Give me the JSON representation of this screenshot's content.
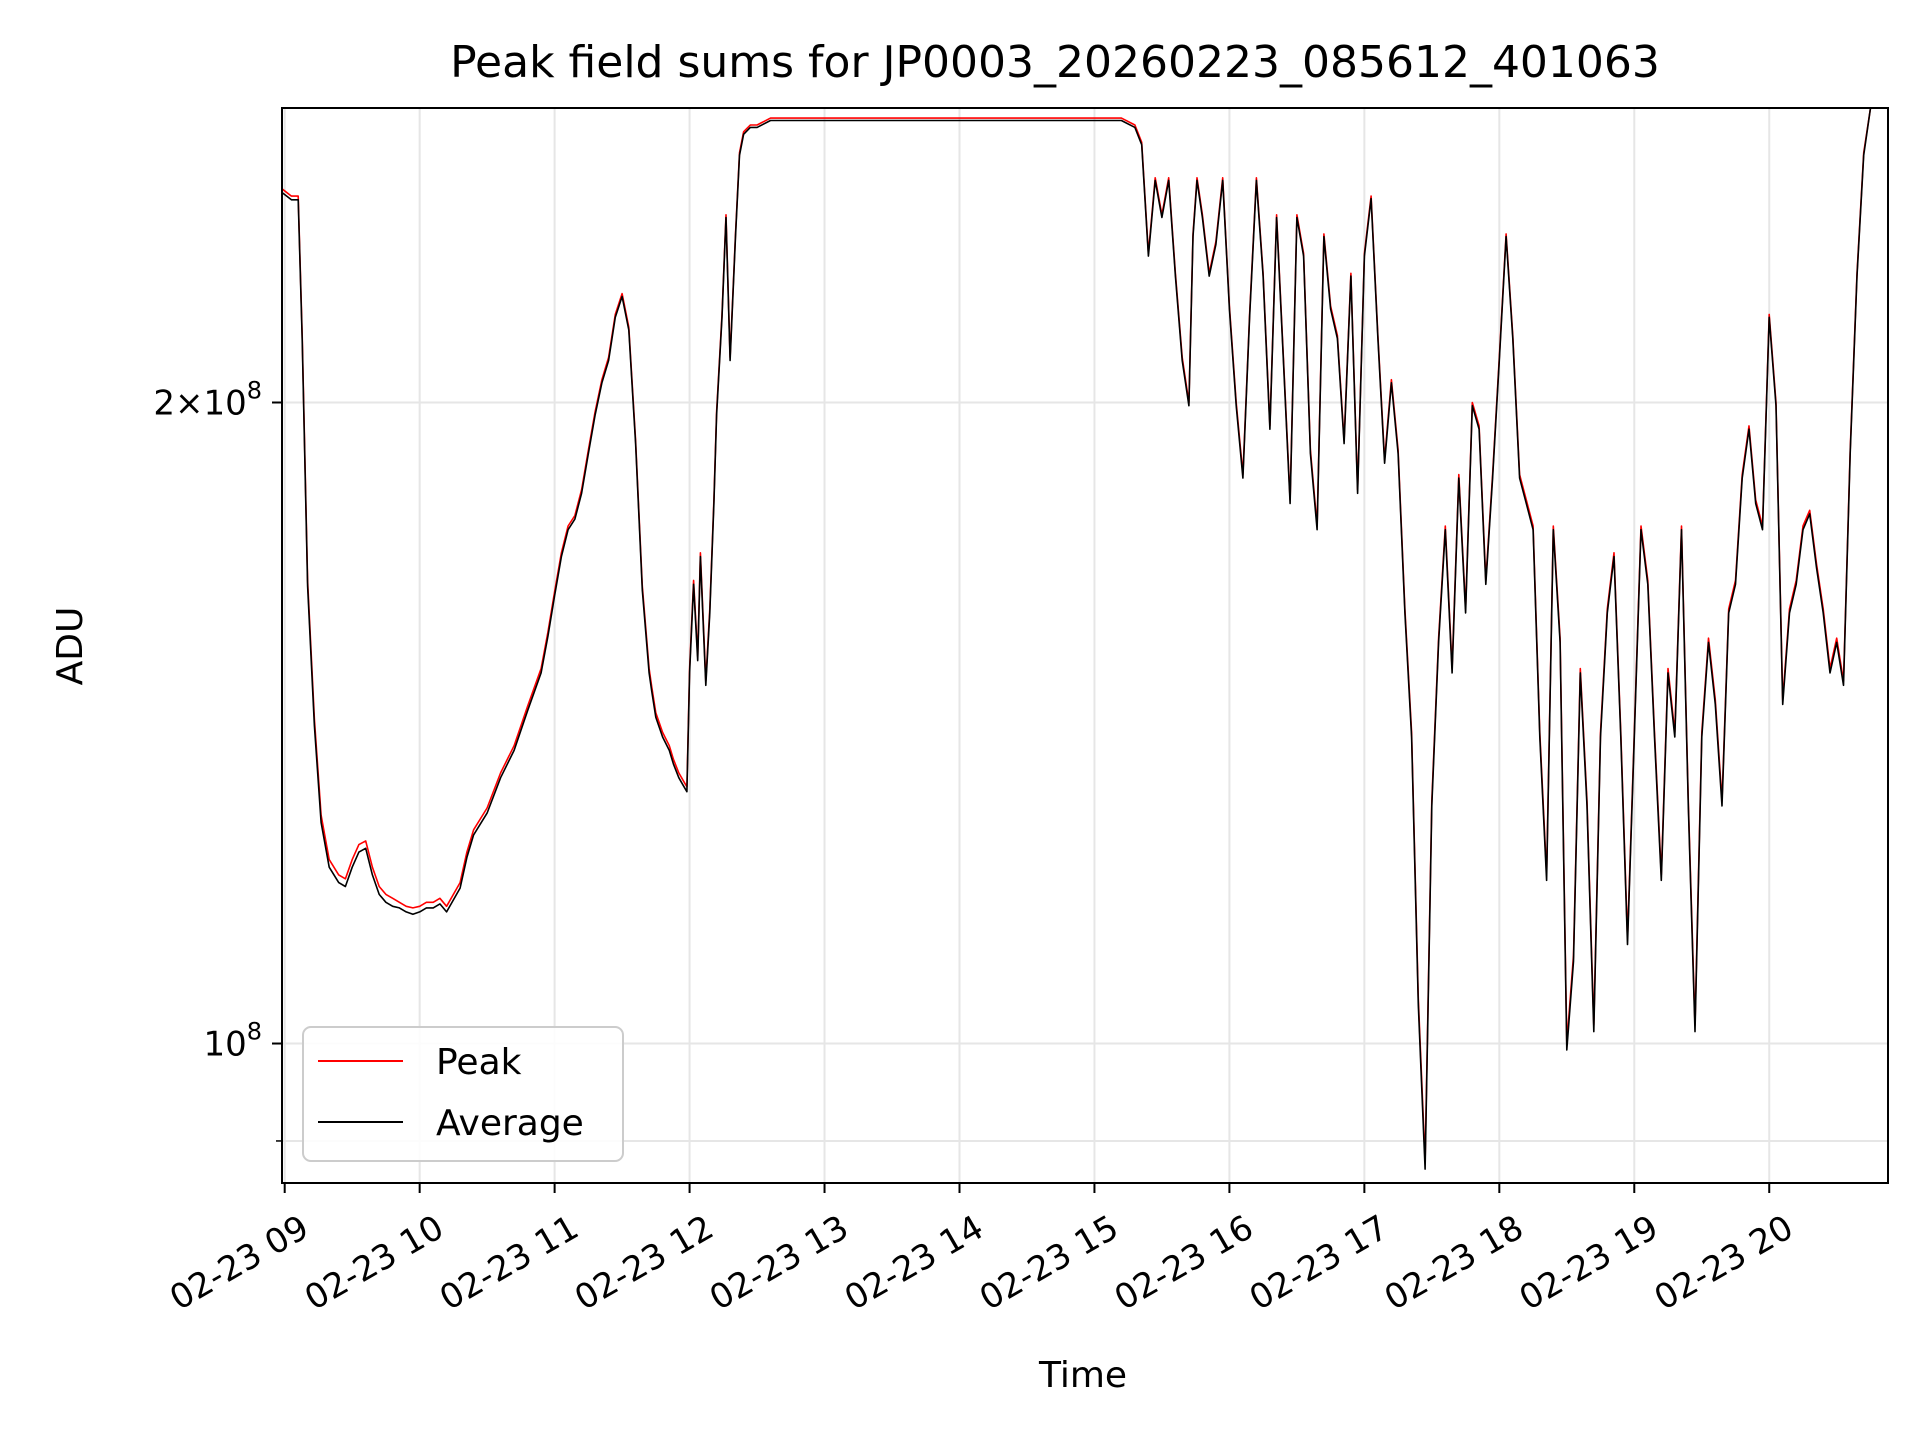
{
  "chart_data": {
    "type": "line",
    "title": "Peak field sums for JP0003_20260223_085612_401063",
    "xlabel": "Time",
    "ylabel": "ADU",
    "yscale": "log",
    "grid": true,
    "legend_position": "lower-left",
    "xlim": [
      8.98,
      20.88
    ],
    "ylim": [
      86000000,
      275000000
    ],
    "x_ticks": [
      {
        "value": 9,
        "label": "02-23 09"
      },
      {
        "value": 10,
        "label": "02-23 10"
      },
      {
        "value": 11,
        "label": "02-23 11"
      },
      {
        "value": 12,
        "label": "02-23 12"
      },
      {
        "value": 13,
        "label": "02-23 13"
      },
      {
        "value": 14,
        "label": "02-23 14"
      },
      {
        "value": 15,
        "label": "02-23 15"
      },
      {
        "value": 16,
        "label": "02-23 16"
      },
      {
        "value": 17,
        "label": "02-23 17"
      },
      {
        "value": 18,
        "label": "02-23 18"
      },
      {
        "value": 19,
        "label": "02-23 19"
      },
      {
        "value": 20,
        "label": "02-23 20"
      }
    ],
    "y_ticks": [
      {
        "value": 200000000,
        "base": "2",
        "exp": "8",
        "times": true
      },
      {
        "value": 100000000,
        "base": "10",
        "exp": "8",
        "times": false
      }
    ],
    "y_minor_ticks": [
      90000000
    ],
    "series": [
      {
        "name": "Peak",
        "color": "#ff0000",
        "x": [
          8.98,
          9.05,
          9.1,
          9.13,
          9.17,
          9.22,
          9.27,
          9.33,
          9.4,
          9.45,
          9.5,
          9.55,
          9.6,
          9.65,
          9.7,
          9.75,
          9.8,
          9.85,
          9.9,
          9.95,
          10.0,
          10.05,
          10.1,
          10.15,
          10.2,
          10.3,
          10.35,
          10.4,
          10.5,
          10.6,
          10.7,
          10.8,
          10.9,
          10.95,
          11.0,
          11.05,
          11.1,
          11.15,
          11.2,
          11.25,
          11.3,
          11.35,
          11.4,
          11.45,
          11.5,
          11.55,
          11.6,
          11.65,
          11.7,
          11.72,
          11.75,
          11.8,
          11.85,
          11.88,
          11.92,
          11.95,
          11.98,
          12.0,
          12.03,
          12.06,
          12.08,
          12.12,
          12.15,
          12.18,
          12.2,
          12.24,
          12.27,
          12.3,
          12.34,
          12.37,
          12.4,
          12.45,
          12.5,
          12.6,
          12.8,
          13.0,
          13.1,
          13.5,
          14.0,
          14.5,
          14.8,
          15.0,
          15.2,
          15.3,
          15.35,
          15.4,
          15.45,
          15.5,
          15.55,
          15.6,
          15.65,
          15.7,
          15.73,
          15.76,
          15.8,
          15.85,
          15.9,
          15.95,
          16.0,
          16.05,
          16.1,
          16.15,
          16.2,
          16.25,
          16.3,
          16.35,
          16.4,
          16.45,
          16.5,
          16.55,
          16.6,
          16.65,
          16.7,
          16.75,
          16.8,
          16.85,
          16.9,
          16.95,
          17.0,
          17.05,
          17.1,
          17.15,
          17.2,
          17.25,
          17.3,
          17.35,
          17.4,
          17.45,
          17.5,
          17.55,
          17.6,
          17.65,
          17.7,
          17.75,
          17.8,
          17.85,
          17.9,
          17.95,
          18.0,
          18.05,
          18.1,
          18.15,
          18.2,
          18.25,
          18.3,
          18.35,
          18.4,
          18.45,
          18.5,
          18.55,
          18.6,
          18.65,
          18.7,
          18.75,
          18.8,
          18.85,
          18.9,
          18.95,
          19.0,
          19.05,
          19.1,
          19.15,
          19.2,
          19.25,
          19.3,
          19.35,
          19.4,
          19.45,
          19.5,
          19.55,
          19.6,
          19.65,
          19.7,
          19.75,
          19.8,
          19.85,
          19.9,
          19.95,
          20.0,
          20.05,
          20.1,
          20.15,
          20.2,
          20.25,
          20.3,
          20.35,
          20.4,
          20.45,
          20.5,
          20.55,
          20.6,
          20.65,
          20.7,
          20.75,
          20.8
        ],
        "values": [
          252000000,
          250000000,
          250000000,
          215000000,
          165000000,
          142000000,
          128000000,
          122000000,
          120000000,
          119500000,
          122000000,
          124000000,
          124500000,
          121000000,
          118500000,
          117500000,
          117000000,
          116500000,
          116000000,
          115800000,
          116000000,
          116500000,
          116500000,
          117000000,
          116000000,
          119000000,
          123000000,
          126000000,
          129000000,
          134000000,
          138000000,
          144000000,
          150000000,
          156000000,
          163000000,
          170000000,
          175000000,
          177000000,
          182000000,
          190000000,
          198000000,
          205000000,
          210000000,
          220000000,
          225000000,
          217000000,
          192000000,
          164000000,
          150000000,
          147000000,
          143000000,
          140000000,
          138000000,
          136000000,
          134000000,
          133000000,
          132000000,
          150000000,
          165000000,
          152000000,
          170000000,
          148000000,
          160000000,
          180000000,
          198000000,
          220000000,
          245000000,
          210000000,
          240000000,
          262000000,
          268000000,
          270000000,
          270000000,
          272000000,
          272000000,
          272000000,
          272000000,
          272000000,
          272000000,
          272000000,
          272000000,
          272000000,
          272000000,
          270000000,
          265000000,
          235000000,
          255000000,
          245000000,
          255000000,
          230000000,
          210000000,
          200000000,
          240000000,
          255000000,
          245000000,
          230000000,
          238000000,
          255000000,
          222000000,
          200000000,
          185000000,
          220000000,
          255000000,
          230000000,
          195000000,
          245000000,
          210000000,
          180000000,
          245000000,
          235000000,
          190000000,
          175000000,
          240000000,
          222000000,
          215000000,
          192000000,
          230000000,
          182000000,
          235000000,
          250000000,
          215000000,
          188000000,
          205000000,
          190000000,
          160000000,
          140000000,
          105000000,
          88000000,
          130000000,
          155000000,
          175000000,
          150000000,
          185000000,
          160000000,
          200000000,
          195000000,
          165000000,
          185000000,
          210000000,
          240000000,
          215000000,
          185000000,
          180000000,
          175000000,
          140000000,
          120000000,
          175000000,
          155000000,
          100000000,
          110000000,
          150000000,
          130000000,
          102000000,
          140000000,
          160000000,
          170000000,
          140000000,
          112000000,
          140000000,
          175000000,
          165000000,
          140000000,
          120000000,
          150000000,
          140000000,
          175000000,
          130000000,
          102000000,
          140000000,
          155000000,
          145000000,
          130000000,
          160000000,
          165000000,
          185000000,
          195000000,
          180000000,
          175000000,
          220000000,
          200000000,
          145000000,
          160000000,
          165000000,
          175000000,
          178000000,
          168000000,
          160000000,
          150000000,
          155000000,
          148000000,
          190000000,
          230000000,
          262000000,
          275000000,
          275000000
        ]
      },
      {
        "name": "Average",
        "color": "#000000",
        "x": [
          8.98,
          9.05,
          9.1,
          9.13,
          9.17,
          9.22,
          9.27,
          9.33,
          9.4,
          9.45,
          9.5,
          9.55,
          9.6,
          9.65,
          9.7,
          9.75,
          9.8,
          9.85,
          9.9,
          9.95,
          10.0,
          10.05,
          10.1,
          10.15,
          10.2,
          10.3,
          10.35,
          10.4,
          10.5,
          10.6,
          10.7,
          10.8,
          10.9,
          10.95,
          11.0,
          11.05,
          11.1,
          11.15,
          11.2,
          11.25,
          11.3,
          11.35,
          11.4,
          11.45,
          11.5,
          11.55,
          11.6,
          11.65,
          11.7,
          11.72,
          11.75,
          11.8,
          11.85,
          11.88,
          11.92,
          11.95,
          11.98,
          12.0,
          12.03,
          12.06,
          12.08,
          12.12,
          12.15,
          12.18,
          12.2,
          12.24,
          12.27,
          12.3,
          12.34,
          12.37,
          12.4,
          12.45,
          12.5,
          12.6,
          12.8,
          13.0,
          13.1,
          13.5,
          14.0,
          14.5,
          14.8,
          15.0,
          15.2,
          15.3,
          15.35,
          15.4,
          15.45,
          15.5,
          15.55,
          15.6,
          15.65,
          15.7,
          15.73,
          15.76,
          15.8,
          15.85,
          15.9,
          15.95,
          16.0,
          16.05,
          16.1,
          16.15,
          16.2,
          16.25,
          16.3,
          16.35,
          16.4,
          16.45,
          16.5,
          16.55,
          16.6,
          16.65,
          16.7,
          16.75,
          16.8,
          16.85,
          16.9,
          16.95,
          17.0,
          17.05,
          17.1,
          17.15,
          17.2,
          17.25,
          17.3,
          17.35,
          17.4,
          17.45,
          17.5,
          17.55,
          17.6,
          17.65,
          17.7,
          17.75,
          17.8,
          17.85,
          17.9,
          17.95,
          18.0,
          18.05,
          18.1,
          18.15,
          18.2,
          18.25,
          18.3,
          18.35,
          18.4,
          18.45,
          18.5,
          18.55,
          18.6,
          18.65,
          18.7,
          18.75,
          18.8,
          18.85,
          18.9,
          18.95,
          19.0,
          19.05,
          19.1,
          19.15,
          19.2,
          19.25,
          19.3,
          19.35,
          19.4,
          19.45,
          19.5,
          19.55,
          19.6,
          19.65,
          19.7,
          19.75,
          19.8,
          19.85,
          19.9,
          19.95,
          20.0,
          20.05,
          20.1,
          20.15,
          20.2,
          20.25,
          20.3,
          20.35,
          20.4,
          20.45,
          20.5,
          20.55,
          20.6,
          20.65,
          20.7,
          20.75,
          20.8
        ],
        "values": [
          251000000,
          249000000,
          249000000,
          214000000,
          164000000,
          141000000,
          127000000,
          121000000,
          119000000,
          118500000,
          121000000,
          123000000,
          123500000,
          120000000,
          117500000,
          116500000,
          116000000,
          115800000,
          115300000,
          115000000,
          115300000,
          115800000,
          115800000,
          116300000,
          115300000,
          118300000,
          122300000,
          125300000,
          128300000,
          133300000,
          137300000,
          143300000,
          149300000,
          155300000,
          162300000,
          169300000,
          174300000,
          176300000,
          181300000,
          189300000,
          197300000,
          204300000,
          209300000,
          219300000,
          224300000,
          216300000,
          191300000,
          163300000,
          149300000,
          146300000,
          142300000,
          139300000,
          137300000,
          135300000,
          133300000,
          132300000,
          131300000,
          149300000,
          164300000,
          151300000,
          169300000,
          147300000,
          159300000,
          179300000,
          197300000,
          219300000,
          244300000,
          209300000,
          239300000,
          261300000,
          267300000,
          269300000,
          269300000,
          271300000,
          271300000,
          271300000,
          271300000,
          271300000,
          271300000,
          271300000,
          271300000,
          271300000,
          271300000,
          269300000,
          264300000,
          234300000,
          254300000,
          244300000,
          254300000,
          229300000,
          209300000,
          199300000,
          239300000,
          254300000,
          244300000,
          229300000,
          237300000,
          254300000,
          221300000,
          199300000,
          184300000,
          219300000,
          254300000,
          229300000,
          194300000,
          244300000,
          209300000,
          179300000,
          244300000,
          234300000,
          189300000,
          174300000,
          239300000,
          221300000,
          214300000,
          191300000,
          229300000,
          181300000,
          234300000,
          249300000,
          214300000,
          187300000,
          204300000,
          189300000,
          159300000,
          139300000,
          104300000,
          87300000,
          129300000,
          154300000,
          174300000,
          149300000,
          184300000,
          159300000,
          199300000,
          194300000,
          164300000,
          184300000,
          209300000,
          239300000,
          214300000,
          184300000,
          179300000,
          174300000,
          139300000,
          119300000,
          174300000,
          154300000,
          99300000,
          109300000,
          149300000,
          129300000,
          101300000,
          139300000,
          159300000,
          169300000,
          139300000,
          111300000,
          139300000,
          174300000,
          164300000,
          139300000,
          119300000,
          149300000,
          139300000,
          174300000,
          129300000,
          101300000,
          139300000,
          154300000,
          144300000,
          129300000,
          159300000,
          164300000,
          184300000,
          194300000,
          179300000,
          174300000,
          219300000,
          199300000,
          144300000,
          159300000,
          164300000,
          174300000,
          177300000,
          167300000,
          159300000,
          149300000,
          154300000,
          147300000,
          189300000,
          229300000,
          261300000,
          275000000,
          275000000
        ]
      }
    ]
  }
}
